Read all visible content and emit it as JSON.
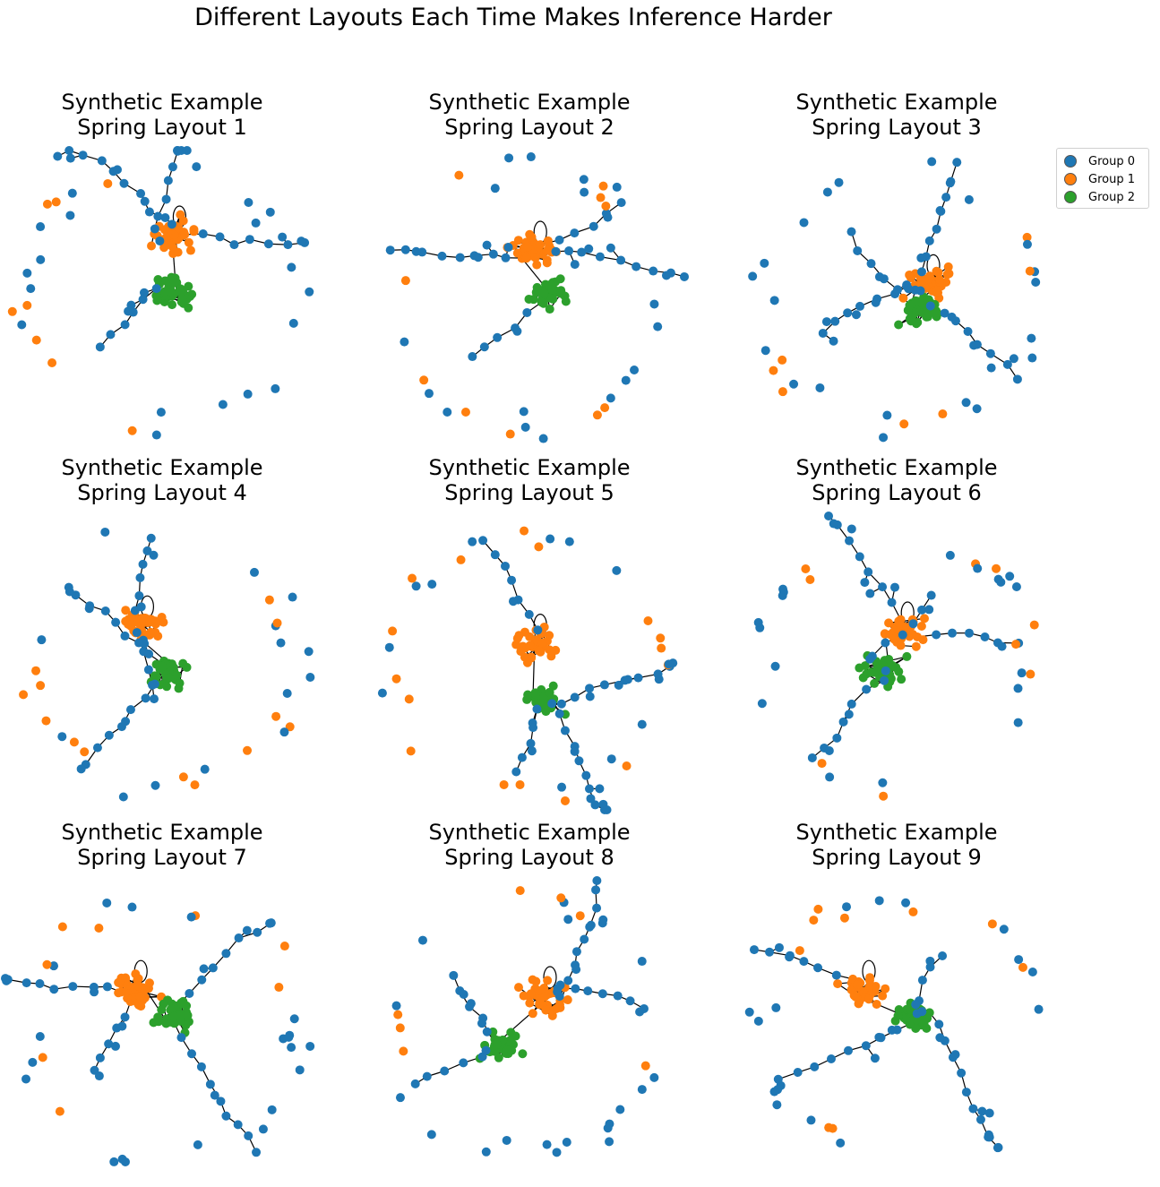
{
  "figure": {
    "title": "Different Layouts Each Time Makes Inference Harder"
  },
  "colors": {
    "group0": "#1f77b4",
    "group1": "#ff7f0e",
    "group2": "#2ca02c",
    "edge": "#000000"
  },
  "legend": {
    "items": [
      {
        "label": "Group 0",
        "color": "#1f77b4"
      },
      {
        "label": "Group 1",
        "color": "#ff7f0e"
      },
      {
        "label": "Group 2",
        "color": "#2ca02c"
      }
    ]
  },
  "panels": [
    {
      "title": "Synthetic Example\nSpring Layout 1"
    },
    {
      "title": "Synthetic Example\nSpring Layout 2"
    },
    {
      "title": "Synthetic Example\nSpring Layout 3"
    },
    {
      "title": "Synthetic Example\nSpring Layout 4"
    },
    {
      "title": "Synthetic Example\nSpring Layout 5"
    },
    {
      "title": "Synthetic Example\nSpring Layout 6"
    },
    {
      "title": "Synthetic Example\nSpring Layout 7"
    },
    {
      "title": "Synthetic Example\nSpring Layout 8"
    },
    {
      "title": "Synthetic Example\nSpring Layout 9"
    }
  ]
}
